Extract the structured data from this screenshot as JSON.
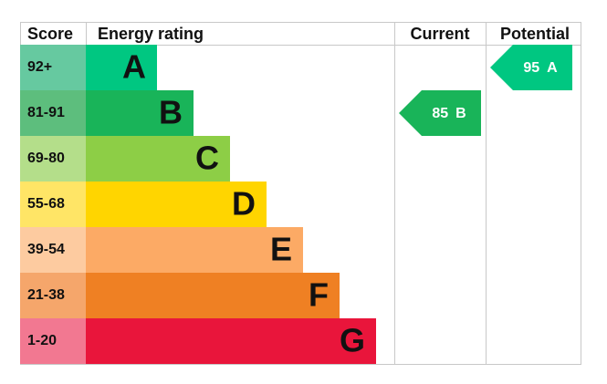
{
  "header": {
    "score": "Score",
    "rating": "Energy rating",
    "current": "Current",
    "potential": "Potential"
  },
  "bands": [
    {
      "score": "92+",
      "letter": "A",
      "color": "#00c781",
      "score_color": "#66c9a0"
    },
    {
      "score": "81-91",
      "letter": "B",
      "color": "#19b459",
      "score_color": "#5dbe7d"
    },
    {
      "score": "69-80",
      "letter": "C",
      "color": "#8dce46",
      "score_color": "#b4de8a"
    },
    {
      "score": "55-68",
      "letter": "D",
      "color": "#ffd500",
      "score_color": "#ffe566"
    },
    {
      "score": "39-54",
      "letter": "E",
      "color": "#fcaa65",
      "score_color": "#fdcba0"
    },
    {
      "score": "21-38",
      "letter": "F",
      "color": "#ef8023",
      "score_color": "#f5a66b"
    },
    {
      "score": "1-20",
      "letter": "G",
      "color": "#e9153b",
      "score_color": "#f27891"
    }
  ],
  "current": {
    "value": 85,
    "rating": "B",
    "color": "#19b459"
  },
  "potential": {
    "value": 95,
    "rating": "A",
    "color": "#00c781"
  }
}
